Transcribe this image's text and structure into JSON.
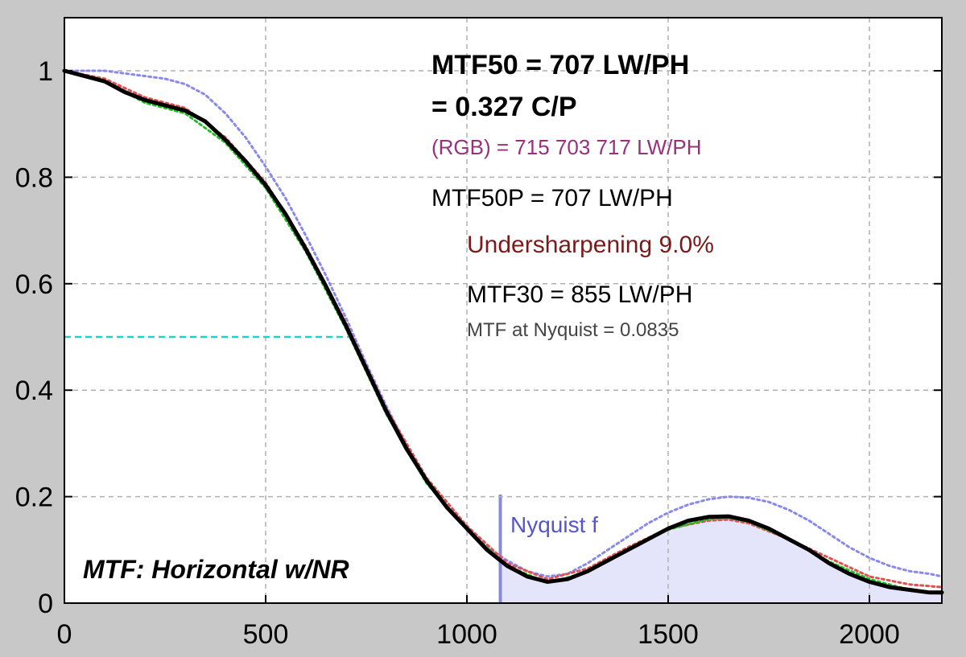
{
  "chart_data": {
    "type": "line",
    "title": "",
    "xlabel": "",
    "ylabel": "",
    "xlim": [
      0,
      2180
    ],
    "ylim": [
      0,
      1.1
    ],
    "grid": true,
    "xticks": [
      0,
      500,
      1000,
      1500,
      2000
    ],
    "yticks": [
      0,
      0.2,
      0.4,
      0.6,
      0.8,
      1
    ],
    "ytick_labels": [
      "0",
      "0.2",
      "0.4",
      "0.6",
      "0.8",
      "1"
    ],
    "xtick_labels": [
      "0",
      "500",
      "1000",
      "1500",
      "2000"
    ],
    "nyquist_x": 1083,
    "mtf50_level": 0.5,
    "mtf50_x": 707,
    "series": [
      {
        "color": "#000000",
        "style": "solid",
        "x": [
          0,
          50,
          100,
          150,
          200,
          250,
          300,
          350,
          400,
          450,
          500,
          550,
          600,
          650,
          700,
          750,
          800,
          850,
          900,
          950,
          1000,
          1050,
          1100,
          1150,
          1200,
          1250,
          1300,
          1350,
          1400,
          1450,
          1500,
          1550,
          1600,
          1650,
          1700,
          1750,
          1800,
          1850,
          1900,
          1950,
          2000,
          2050,
          2100,
          2150,
          2180
        ],
        "y": [
          1.0,
          0.99,
          0.98,
          0.96,
          0.945,
          0.935,
          0.925,
          0.905,
          0.87,
          0.83,
          0.785,
          0.73,
          0.665,
          0.595,
          0.52,
          0.44,
          0.36,
          0.29,
          0.23,
          0.18,
          0.14,
          0.1,
          0.07,
          0.05,
          0.04,
          0.045,
          0.06,
          0.08,
          0.1,
          0.12,
          0.14,
          0.155,
          0.162,
          0.163,
          0.155,
          0.14,
          0.12,
          0.1,
          0.075,
          0.055,
          0.04,
          0.03,
          0.025,
          0.02,
          0.02
        ]
      },
      {
        "color": "#e05050",
        "style": "dotted",
        "x": [
          0,
          100,
          200,
          300,
          400,
          500,
          600,
          700,
          800,
          900,
          1000,
          1100,
          1200,
          1300,
          1400,
          1500,
          1600,
          1650,
          1700,
          1800,
          1900,
          2000,
          2100,
          2180
        ],
        "y": [
          1.0,
          0.985,
          0.95,
          0.93,
          0.875,
          0.79,
          0.67,
          0.525,
          0.365,
          0.235,
          0.145,
          0.075,
          0.045,
          0.065,
          0.105,
          0.14,
          0.155,
          0.157,
          0.15,
          0.12,
          0.085,
          0.05,
          0.035,
          0.03
        ]
      },
      {
        "color": "#20c020",
        "style": "dotted",
        "x": [
          0,
          100,
          200,
          300,
          400,
          500,
          600,
          700,
          800,
          900,
          1000,
          1100,
          1200,
          1300,
          1400,
          1500,
          1600,
          1650,
          1700,
          1800,
          1900,
          2000,
          2100,
          2180
        ],
        "y": [
          1.0,
          0.98,
          0.94,
          0.92,
          0.865,
          0.78,
          0.66,
          0.515,
          0.355,
          0.225,
          0.138,
          0.07,
          0.038,
          0.058,
          0.1,
          0.138,
          0.158,
          0.16,
          0.153,
          0.12,
          0.078,
          0.045,
          0.025,
          0.018
        ]
      },
      {
        "color": "#8888ee",
        "style": "dotted",
        "x": [
          0,
          50,
          100,
          150,
          200,
          250,
          300,
          350,
          400,
          450,
          500,
          550,
          600,
          650,
          700,
          750,
          800,
          850,
          900,
          950,
          1000,
          1050,
          1100,
          1150,
          1200,
          1250,
          1300,
          1350,
          1400,
          1450,
          1500,
          1550,
          1600,
          1650,
          1700,
          1750,
          1800,
          1850,
          1900,
          1950,
          2000,
          2050,
          2100,
          2150,
          2180
        ],
        "y": [
          1.0,
          1.0,
          1.0,
          0.995,
          0.99,
          0.985,
          0.975,
          0.955,
          0.92,
          0.875,
          0.82,
          0.76,
          0.69,
          0.615,
          0.535,
          0.45,
          0.37,
          0.295,
          0.23,
          0.18,
          0.14,
          0.105,
          0.08,
          0.06,
          0.05,
          0.055,
          0.075,
          0.1,
          0.125,
          0.15,
          0.17,
          0.185,
          0.195,
          0.2,
          0.198,
          0.19,
          0.175,
          0.155,
          0.13,
          0.105,
          0.085,
          0.07,
          0.06,
          0.055,
          0.05
        ]
      }
    ]
  },
  "annotations": {
    "mtf50": "MTF50 = 707 LW/PH",
    "mtf50_cp": "= 0.327 C/P",
    "rgb": "(RGB) = 715  703  717 LW/PH",
    "mtf50p": "MTF50P = 707 LW/PH",
    "undersharpening": "Undersharpening  9.0%",
    "mtf30": "MTF30 = 855 LW/PH",
    "nyquist_value": "MTF at Nyquist = 0.0835",
    "nyquist_label": "Nyquist f",
    "panel_label": "MTF: Horizontal w/NR"
  },
  "colors": {
    "plot_bg": "#ffffff",
    "page_bg": "#c8c8c8",
    "nyquist_fill": "#e4e4fa",
    "nyquist_line": "#8888dd",
    "mtf50_line": "#20d0d0",
    "rgb_text": "#9a2f7f",
    "undersharp_text": "#7a1a1a",
    "nyquist_text": "#5555cc",
    "small_text": "#444444"
  }
}
